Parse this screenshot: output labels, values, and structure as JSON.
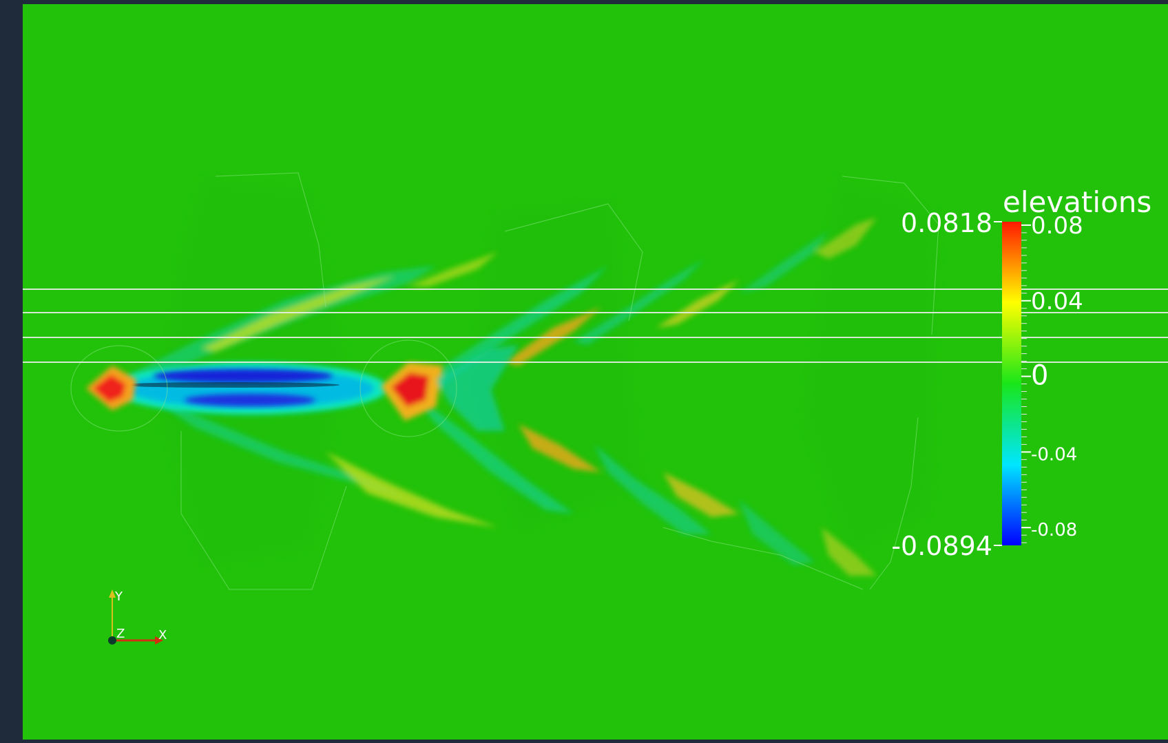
{
  "viewport": {
    "background": "#22c20a"
  },
  "chart_data": {
    "type": "heatmap",
    "field": "elevations",
    "title": "elevations",
    "scalar_range": [
      -0.0894,
      0.0818
    ],
    "range_labels": {
      "max": "0.0818",
      "min": "-0.0894"
    },
    "ticks": [
      {
        "value": 0.08,
        "label": "0.08"
      },
      {
        "value": 0.04,
        "label": "0.04"
      },
      {
        "value": 0,
        "label": "0"
      },
      {
        "value": -0.04,
        "label": "-0.04"
      },
      {
        "value": -0.08,
        "label": "-0.08"
      }
    ],
    "colormap": [
      "#0000ff",
      "#00e5ff",
      "#00ff40",
      "#ffff00",
      "#ff0000"
    ],
    "axes_triad": {
      "x": "X",
      "y": "Y",
      "z": "Z"
    }
  }
}
